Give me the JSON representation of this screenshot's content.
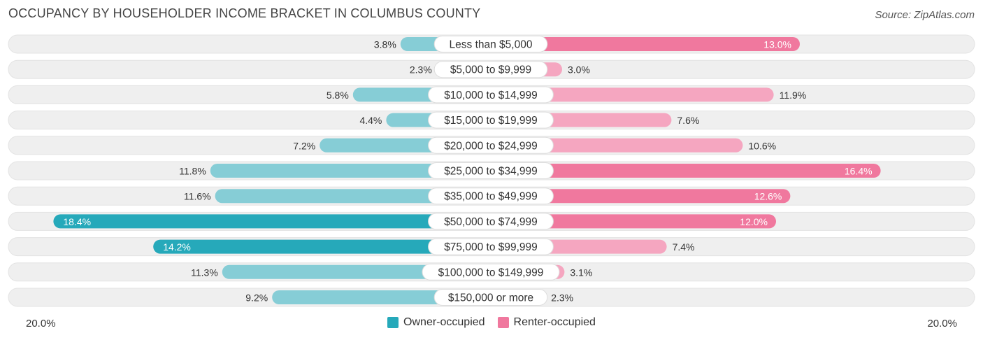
{
  "title": "OCCUPANCY BY HOUSEHOLDER INCOME BRACKET IN COLUMBUS COUNTY",
  "source": "Source: ZipAtlas.com",
  "colors": {
    "owner_light": "#86cdd6",
    "owner_dark": "#26a9ba",
    "renter_light": "#f5a6c0",
    "renter_dark": "#f0789e",
    "track": "#efefef"
  },
  "chart_data": {
    "type": "bar",
    "orientation": "diverging-horizontal",
    "title": "OCCUPANCY BY HOUSEHOLDER INCOME BRACKET IN COLUMBUS COUNTY",
    "categories": [
      "Less than $5,000",
      "$5,000 to $9,999",
      "$10,000 to $14,999",
      "$15,000 to $19,999",
      "$20,000 to $24,999",
      "$25,000 to $34,999",
      "$35,000 to $49,999",
      "$50,000 to $74,999",
      "$75,000 to $99,999",
      "$100,000 to $149,999",
      "$150,000 or more"
    ],
    "series": [
      {
        "name": "Owner-occupied",
        "values": [
          3.8,
          2.3,
          5.8,
          4.4,
          7.2,
          11.8,
          11.6,
          18.4,
          14.2,
          11.3,
          9.2
        ],
        "labels": [
          "3.8%",
          "2.3%",
          "5.8%",
          "4.4%",
          "7.2%",
          "11.8%",
          "11.6%",
          "18.4%",
          "14.2%",
          "11.3%",
          "9.2%"
        ]
      },
      {
        "name": "Renter-occupied",
        "values": [
          13.0,
          3.0,
          11.9,
          7.6,
          10.6,
          16.4,
          12.6,
          12.0,
          7.4,
          3.1,
          2.3
        ],
        "labels": [
          "13.0%",
          "3.0%",
          "11.9%",
          "7.6%",
          "10.6%",
          "16.4%",
          "12.6%",
          "12.0%",
          "7.4%",
          "3.1%",
          "2.3%"
        ]
      }
    ],
    "xlim": [
      -20,
      20
    ],
    "axis_left_label": "20.0%",
    "axis_right_label": "20.0%",
    "legend_position": "bottom-center"
  }
}
